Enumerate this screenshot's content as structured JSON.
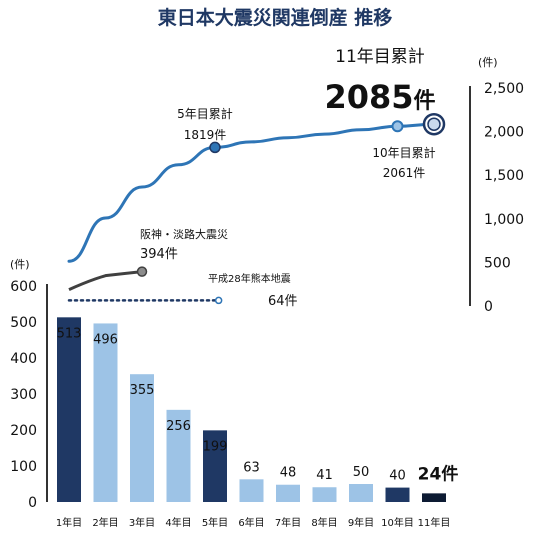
{
  "title": "東日本大震災関連倒産 推移",
  "chart_data": [
    {
      "type": "bar",
      "title": "",
      "ylabel": "(件)",
      "ylim": [
        0,
        600
      ],
      "y_ticks": [
        "600",
        "500",
        "400",
        "300",
        "200",
        "100",
        "0"
      ],
      "categories": [
        "1年目",
        "2年目",
        "3年目",
        "4年目",
        "5年目",
        "6年目",
        "7年目",
        "8年目",
        "9年目",
        "10年目",
        "11年目"
      ],
      "values": [
        513,
        496,
        355,
        256,
        199,
        63,
        48,
        41,
        50,
        40,
        24
      ],
      "value_labels": [
        "513",
        "496",
        "355",
        "256",
        "199",
        "63",
        "48",
        "41",
        "50",
        "40",
        "24件"
      ],
      "colors": [
        "#1f3864",
        "#9dc3e6",
        "#9dc3e6",
        "#9dc3e6",
        "#1f3864",
        "#9dc3e6",
        "#9dc3e6",
        "#9dc3e6",
        "#9dc3e6",
        "#1f3864",
        "#0d1b33"
      ]
    },
    {
      "type": "line",
      "title": "",
      "ylabel": "(件)",
      "ylim": [
        0,
        2500
      ],
      "y_ticks": [
        "2,500",
        "2,000",
        "1,500",
        "1,000",
        "500",
        "0"
      ],
      "series": [
        {
          "name": "",
          "x": [
            1,
            2,
            3,
            4,
            5,
            6,
            7,
            8,
            9,
            10,
            11
          ],
          "values": [
            513,
            1009,
            1364,
            1620,
            1819,
            1882,
            1930,
            1971,
            2021,
            2061,
            2085
          ],
          "color": "#2e75b6"
        },
        {
          "name": "阪神・淡路大震災",
          "x": [
            1,
            2,
            3
          ],
          "values": [
            null,
            null,
            394
          ],
          "color": "#404040"
        },
        {
          "name": "平成28年熊本地震",
          "x": [
            1,
            5
          ],
          "values": [
            null,
            64
          ],
          "color": "#1f3864"
        }
      ],
      "annotations": {
        "y5_title": "5年目累計",
        "y5_value": "1819件",
        "y10_title": "10年目累計",
        "y10_value": "2061件",
        "y11_title": "11年目累計",
        "y11_number": "2085",
        "y11_unit": "件",
        "hanshin_title": "阪神・淡路大震災",
        "hanshin_value": "394件",
        "kumamoto_title": "平成28年熊本地震",
        "kumamoto_value": "64件"
      }
    }
  ]
}
